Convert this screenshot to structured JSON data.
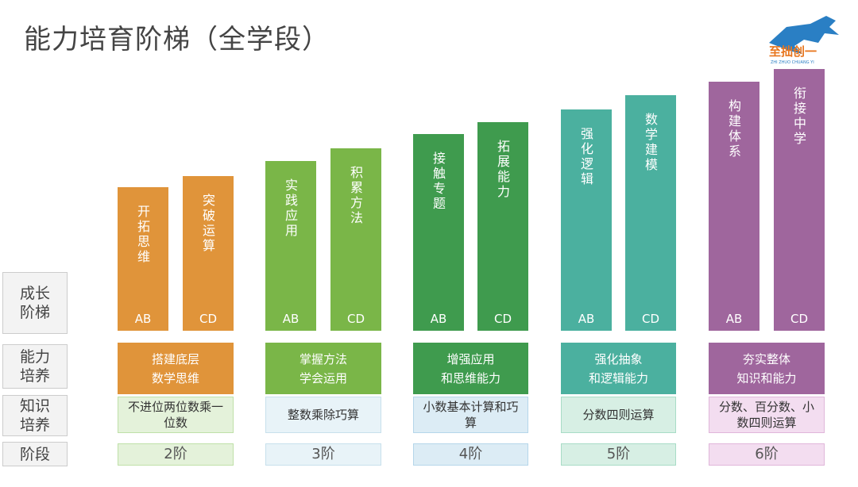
{
  "header": {
    "title": "能力培育阶梯（全学段）",
    "logo_name": "至拙创一",
    "logo_pinyin": "ZHI ZHUO CHUANG YI"
  },
  "row_labels": [
    "成长阶梯",
    "能力培养",
    "知识培养",
    "阶段"
  ],
  "stages": [
    {
      "bars": [
        {
          "text": "开拓思维",
          "level": "AB"
        },
        {
          "text": "突破运算",
          "level": "CD"
        }
      ],
      "ability": [
        "搭建底层",
        "数学思维"
      ],
      "knowledge": "不进位两位数乘一位数",
      "grade": "2阶"
    },
    {
      "bars": [
        {
          "text": "实践应用",
          "level": "AB"
        },
        {
          "text": "积累方法",
          "level": "CD"
        }
      ],
      "ability": [
        "掌握方法",
        "学会运用"
      ],
      "knowledge": "整数乘除巧算",
      "grade": "3阶"
    },
    {
      "bars": [
        {
          "text": "接触专题",
          "level": "AB"
        },
        {
          "text": "拓展能力",
          "level": "CD"
        }
      ],
      "ability": [
        "增强应用",
        "和思维能力"
      ],
      "knowledge": "小数基本计算和巧算",
      "grade": "4阶"
    },
    {
      "bars": [
        {
          "text": "强化逻辑",
          "level": "AB"
        },
        {
          "text": "数学建模",
          "level": "CD"
        }
      ],
      "ability": [
        "强化抽象",
        "和逻辑能力"
      ],
      "knowledge": "分数四则运算",
      "grade": "5阶"
    },
    {
      "bars": [
        {
          "text": "构建体系",
          "level": "AB"
        },
        {
          "text": "衔接中学",
          "level": "CD"
        }
      ],
      "ability": [
        "夯实整体",
        "知识和能力"
      ],
      "knowledge": "分数、百分数、小数四则运算",
      "grade": "6阶"
    }
  ]
}
